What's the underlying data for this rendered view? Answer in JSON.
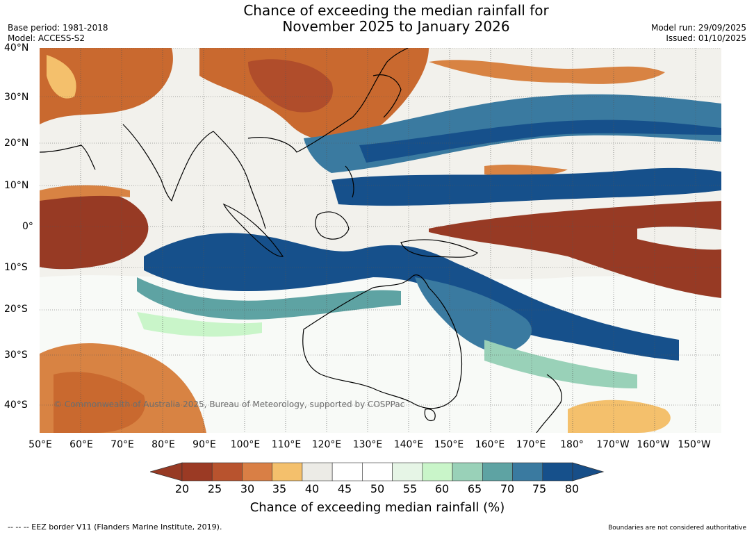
{
  "title": {
    "line1": "Chance of exceeding the median rainfall for",
    "line2": "November 2025 to January 2026"
  },
  "meta_left": {
    "base_period": "Base period: 1981-2018",
    "model": "Model: ACCESS-S2"
  },
  "meta_right": {
    "model_run": "Model run: 29/09/2025",
    "issued": "Issued: 01/10/2025"
  },
  "map": {
    "lat_labels": [
      "40°N",
      "30°N",
      "20°N",
      "10°N",
      "0°",
      "10°S",
      "20°S",
      "30°S",
      "40°S"
    ],
    "lon_labels": [
      "50°E",
      "60°E",
      "70°E",
      "80°E",
      "90°E",
      "100°E",
      "110°E",
      "120°E",
      "130°E",
      "140°E",
      "150°E",
      "160°E",
      "170°E",
      "180°",
      "170°W",
      "160°W",
      "150°W"
    ],
    "copyright": "© Commonwealth of Australia 2025, Bureau of Meteorology, supported by COSPPac"
  },
  "colorbar": {
    "title": "Chance of exceeding median rainfall (%)",
    "ticks": [
      "20",
      "25",
      "30",
      "35",
      "40",
      "45",
      "50",
      "55",
      "60",
      "65",
      "70",
      "75",
      "80"
    ],
    "colors": [
      "#9b3a24",
      "#b8532e",
      "#d97f45",
      "#f4c06c",
      "#ecebe6",
      "#ffffff",
      "#ffffff",
      "#e6f5e6",
      "#c9f5c9",
      "#99d1b8",
      "#5ea3a3",
      "#3a7aa0",
      "#16508b"
    ],
    "under_color": "#973a24",
    "over_color": "#174e88"
  },
  "footer": {
    "eez": "--  --  -- EEZ border V11 (Flanders Marine Institute, 2019).",
    "disclaimer": "Boundaries are not considered authoritative"
  }
}
